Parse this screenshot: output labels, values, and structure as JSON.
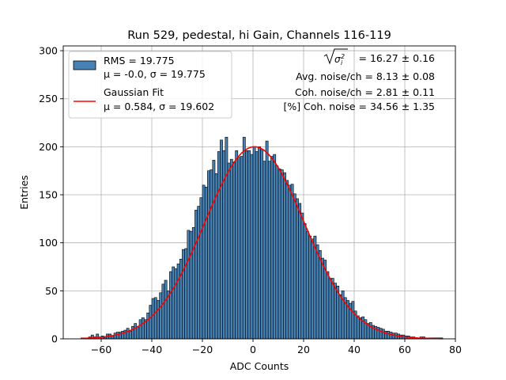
{
  "chart_data": {
    "type": "bar",
    "title": "Run 529, pedestal, hi Gain, Channels 116-119",
    "xlabel": "ADC Counts",
    "ylabel": "Entries",
    "xlim": [
      -75,
      80
    ],
    "ylim": [
      0,
      305
    ],
    "xticks": [
      -60,
      -40,
      -20,
      0,
      20,
      40,
      60,
      80
    ],
    "yticks": [
      0,
      50,
      100,
      150,
      200,
      250,
      300
    ],
    "grid": true,
    "legend_position": "top-left",
    "bar_color": "#4682b4",
    "fit_color": "#ff0000",
    "histogram": {
      "name_line1": "RMS = 19.775",
      "name_line2": "μ = -0.0, σ = 19.775",
      "bin_width": 1,
      "bin_starts": [
        -68,
        -67,
        -66,
        -65,
        -64,
        -63,
        -62,
        -61,
        -60,
        -59,
        -58,
        -57,
        -56,
        -55,
        -54,
        -53,
        -52,
        -51,
        -50,
        -49,
        -48,
        -47,
        -46,
        -45,
        -44,
        -43,
        -42,
        -41,
        -40,
        -39,
        -38,
        -37,
        -36,
        -35,
        -34,
        -33,
        -32,
        -31,
        -30,
        -29,
        -28,
        -27,
        -26,
        -25,
        -24,
        -23,
        -22,
        -21,
        -20,
        -19,
        -18,
        -17,
        -16,
        -15,
        -14,
        -13,
        -12,
        -11,
        -10,
        -9,
        -8,
        -7,
        -6,
        -5,
        -4,
        -3,
        -2,
        -1,
        0,
        1,
        2,
        3,
        4,
        5,
        6,
        7,
        8,
        9,
        10,
        11,
        12,
        13,
        14,
        15,
        16,
        17,
        18,
        19,
        20,
        21,
        22,
        23,
        24,
        25,
        26,
        27,
        28,
        29,
        30,
        31,
        32,
        33,
        34,
        35,
        36,
        37,
        38,
        39,
        40,
        41,
        42,
        43,
        44,
        45,
        46,
        47,
        48,
        49,
        50,
        51,
        52,
        53,
        54,
        55,
        56,
        57,
        58,
        59,
        60,
        61,
        62,
        63,
        64,
        65,
        66,
        67,
        68,
        69,
        70,
        71,
        72,
        73,
        74
      ],
      "counts": [
        1,
        1,
        1,
        2,
        4,
        2,
        5,
        2,
        3,
        1,
        5,
        5,
        3,
        6,
        7,
        7,
        8,
        9,
        11,
        8,
        13,
        16,
        13,
        20,
        22,
        20,
        27,
        35,
        42,
        43,
        40,
        48,
        57,
        61,
        50,
        70,
        75,
        73,
        78,
        83,
        93,
        94,
        113,
        112,
        116,
        134,
        138,
        147,
        160,
        158,
        175,
        176,
        186,
        172,
        195,
        207,
        196,
        210,
        183,
        187,
        184,
        196,
        189,
        190,
        210,
        196,
        196,
        192,
        200,
        195,
        200,
        197,
        185,
        206,
        185,
        190,
        192,
        180,
        177,
        176,
        173,
        165,
        160,
        161,
        151,
        146,
        141,
        131,
        120,
        112,
        107,
        104,
        107,
        98,
        92,
        84,
        82,
        70,
        63,
        63,
        58,
        55,
        46,
        50,
        43,
        40,
        37,
        39,
        29,
        24,
        22,
        23,
        20,
        16,
        17,
        14,
        13,
        12,
        11,
        10,
        8,
        8,
        7,
        6,
        6,
        5,
        4,
        4,
        3,
        3,
        2,
        2,
        1,
        1,
        2,
        2,
        1,
        1,
        1,
        1,
        1,
        1,
        1,
        1,
        1
      ]
    },
    "fit": {
      "name_line1": "Gaussian Fit",
      "name_line2": "μ = 0.584, σ = 19.602",
      "mu": 0.584,
      "sigma": 19.602,
      "amplitude": 200,
      "x_range": [
        -68,
        75
      ]
    },
    "annotations": [
      "= 16.27 ± 0.16",
      "Avg. noise/ch = 8.13 ± 0.08",
      "Coh. noise/ch = 2.81 ± 0.11",
      "[%] Coh. noise = 34.56 ± 1.35"
    ]
  }
}
